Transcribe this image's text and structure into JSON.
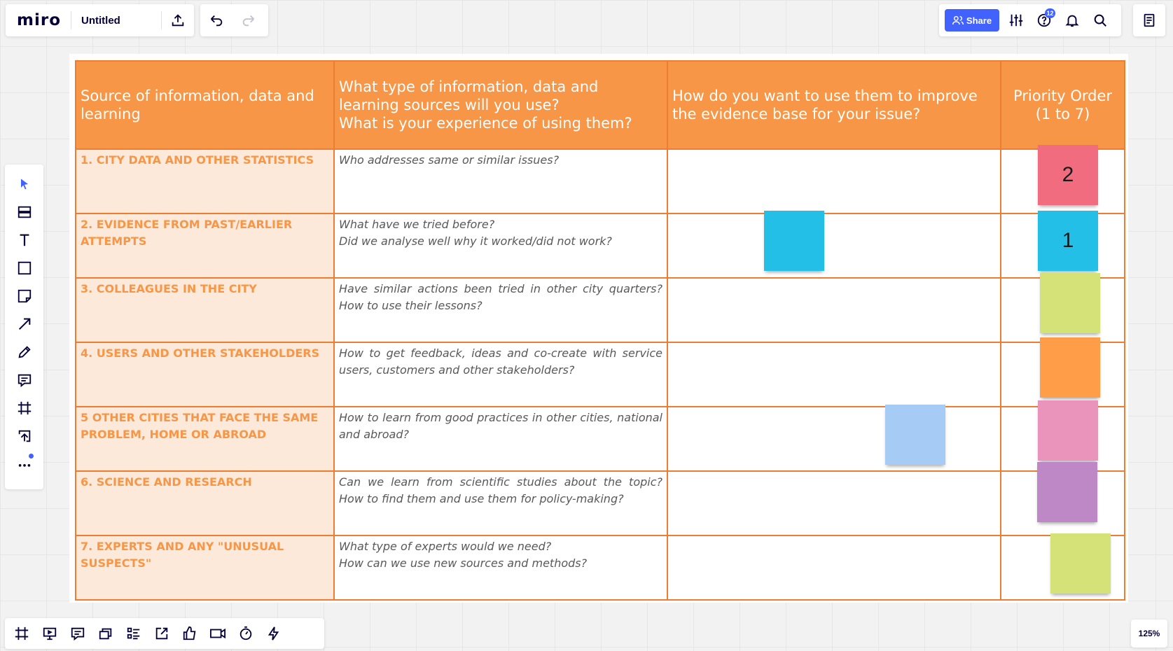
{
  "app": {
    "logo": "miro",
    "board_title": "Untitled"
  },
  "toolbar": {
    "share_label": "Share",
    "help_badge": "12",
    "zoom_label": "125%"
  },
  "left_tools": [
    "select-icon",
    "templates-icon",
    "text-icon",
    "shape-icon",
    "sticky-note-icon",
    "connection-line-icon",
    "pen-icon",
    "comment-icon",
    "frame-icon",
    "upload-icon",
    "more-icon"
  ],
  "bottom_tools": [
    "frames-icon",
    "presentation-icon",
    "comments-icon",
    "cards-icon",
    "list-icon",
    "share-screen-icon",
    "voting-icon",
    "video-chat-icon",
    "timer-icon",
    "apps-icon"
  ],
  "table": {
    "headers": [
      "Source of information, data and learning",
      "What type of information, data and learning sources will you use?\nWhat is your experience of using them?",
      "How do you want to use them to improve the evidence base for your issue?",
      "Priority Order\n(1 to 7)"
    ],
    "rows": [
      {
        "source": "1. CITY DATA AND OTHER STATISTICS",
        "question": "Who addresses same or similar issues?"
      },
      {
        "source": "2. EVIDENCE FROM PAST/EARLIER ATTEMPTS",
        "question": "What have we tried before?\nDid we analyse well why it worked/did not work?"
      },
      {
        "source": "3. COLLEAGUES IN THE CITY",
        "question": "Have similar actions been tried in other city quarters? How to use their lessons?"
      },
      {
        "source": "4. USERS AND OTHER STAKEHOLDERS",
        "question": "How to get feedback, ideas and co-create with service users, customers and other stakeholders?"
      },
      {
        "source": "5 OTHER CITIES THAT FACE THE SAME PROBLEM, HOME OR ABROAD",
        "question": "How to learn from good practices in other cities, national and abroad?"
      },
      {
        "source": "6. SCIENCE AND RESEARCH",
        "question": "Can we learn from scientific studies about the topic? How to find them and use them for policy-making?"
      },
      {
        "source": "7. EXPERTS AND ANY \"UNUSUAL SUSPECTS\"",
        "question": "What type of experts would we need?\nHow can we use new sources and methods?"
      }
    ]
  },
  "stickies": [
    {
      "text": "2",
      "color": "#f16c7f"
    },
    {
      "text": "1",
      "color": "#23bfe7"
    },
    {
      "text": "",
      "color": "#d5e277"
    },
    {
      "text": "",
      "color": "#ff9d48"
    },
    {
      "text": "",
      "color": "#ea94bb"
    },
    {
      "text": "",
      "color": "#be88c7"
    },
    {
      "text": "",
      "color": "#d5e277"
    },
    {
      "text": "",
      "color": "#23bfe7"
    },
    {
      "text": "",
      "color": "#a6ccf5"
    }
  ]
}
